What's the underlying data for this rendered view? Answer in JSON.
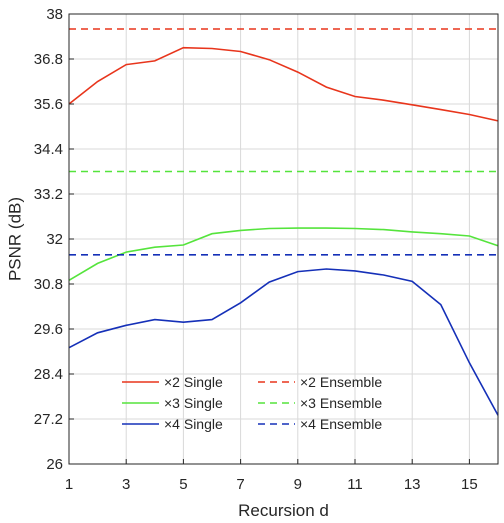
{
  "chart_data": {
    "type": "line",
    "xlabel": "Recursion d",
    "ylabel": "PSNR (dB)",
    "xlim": [
      1,
      16
    ],
    "ylim": [
      26,
      38
    ],
    "xticks": [
      1,
      3,
      5,
      7,
      9,
      11,
      13,
      15
    ],
    "xtick_labels": [
      "1",
      "3",
      "5",
      "7",
      "9",
      "11",
      "13",
      "15"
    ],
    "yticks": [
      26,
      27.2,
      28.4,
      29.6,
      30.8,
      32,
      33.2,
      34.4,
      35.6,
      36.8,
      38
    ],
    "ytick_labels": [
      "26",
      "27.2",
      "28.4",
      "29.6",
      "30.8",
      "32",
      "33.2",
      "34.4",
      "35.6",
      "36.8",
      "38"
    ],
    "grid": true,
    "legend_position": "bottom-center",
    "x": [
      1,
      2,
      3,
      4,
      5,
      6,
      7,
      8,
      9,
      10,
      11,
      12,
      13,
      14,
      15,
      16
    ],
    "series": [
      {
        "name": "×2 Single",
        "style": "solid",
        "color": "#e8351c",
        "values": [
          35.6,
          36.2,
          36.65,
          36.75,
          37.1,
          37.08,
          37.0,
          36.78,
          36.45,
          36.05,
          35.8,
          35.7,
          35.58,
          35.45,
          35.32,
          35.15
        ]
      },
      {
        "name": "×3 Single",
        "style": "solid",
        "color": "#55e43c",
        "values": [
          30.9,
          31.35,
          31.65,
          31.78,
          31.84,
          32.14,
          32.23,
          32.28,
          32.29,
          32.29,
          32.28,
          32.25,
          32.19,
          32.14,
          32.08,
          31.82
        ]
      },
      {
        "name": "×4 Single",
        "style": "solid",
        "color": "#1530b8",
        "values": [
          29.1,
          29.5,
          29.7,
          29.85,
          29.78,
          29.85,
          30.3,
          30.85,
          31.13,
          31.2,
          31.15,
          31.04,
          30.87,
          30.25,
          28.7,
          27.3
        ]
      },
      {
        "name": "×2 Ensemble",
        "style": "dashed",
        "color": "#e8351c",
        "values": [
          37.6,
          37.6,
          37.6,
          37.6,
          37.6,
          37.6,
          37.6,
          37.6,
          37.6,
          37.6,
          37.6,
          37.6,
          37.6,
          37.6,
          37.6,
          37.6
        ]
      },
      {
        "name": "×3 Ensemble",
        "style": "dashed",
        "color": "#55e43c",
        "values": [
          33.8,
          33.8,
          33.8,
          33.8,
          33.8,
          33.8,
          33.8,
          33.8,
          33.8,
          33.8,
          33.8,
          33.8,
          33.8,
          33.8,
          33.8,
          33.8
        ]
      },
      {
        "name": "×4 Ensemble",
        "style": "dashed",
        "color": "#1530b8",
        "values": [
          31.58,
          31.58,
          31.58,
          31.58,
          31.58,
          31.58,
          31.58,
          31.58,
          31.58,
          31.58,
          31.58,
          31.58,
          31.58,
          31.58,
          31.58,
          31.58
        ]
      }
    ]
  }
}
